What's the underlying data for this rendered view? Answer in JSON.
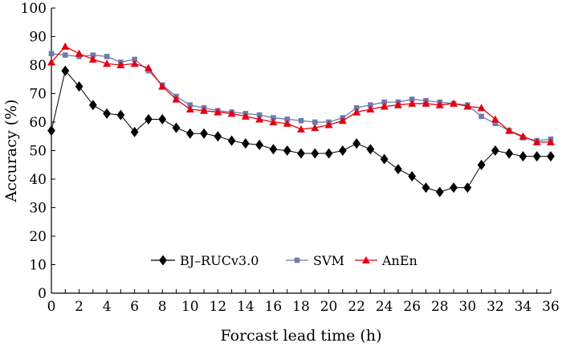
{
  "chart_data": {
    "type": "line",
    "title": "",
    "xlabel": "Forcast lead time (h)",
    "ylabel": "Accuracy (%)",
    "xlim": [
      0,
      36
    ],
    "ylim": [
      0,
      100
    ],
    "xticks": [
      "0",
      "2",
      "4",
      "6",
      "8",
      "10",
      "12",
      "14",
      "16",
      "18",
      "20",
      "22",
      "24",
      "26",
      "28",
      "30",
      "32",
      "34",
      "36"
    ],
    "yticks": [
      "0",
      "10",
      "20",
      "30",
      "40",
      "50",
      "60",
      "70",
      "80",
      "90",
      "100"
    ],
    "x": [
      0,
      1,
      2,
      3,
      4,
      5,
      6,
      7,
      8,
      9,
      10,
      11,
      12,
      13,
      14,
      15,
      16,
      17,
      18,
      19,
      20,
      21,
      22,
      23,
      24,
      25,
      26,
      27,
      28,
      29,
      30,
      31,
      32,
      33,
      34,
      35,
      36
    ],
    "legend_position": "bottom-center",
    "series": [
      {
        "name": "BJ–RUCv3.0",
        "color": "#000000",
        "marker": "diamond",
        "values": [
          57,
          78,
          72.5,
          66,
          63,
          62.5,
          56.5,
          61,
          61,
          58,
          56,
          56,
          55,
          53.5,
          52.5,
          52,
          50.5,
          50,
          49,
          49,
          49,
          50,
          52.5,
          50.5,
          47,
          43.5,
          41,
          37,
          35.5,
          37,
          37,
          45,
          50,
          49,
          48,
          48,
          48
        ]
      },
      {
        "name": "SVM",
        "color": "#6e7bab",
        "marker": "square",
        "values": [
          84,
          83.5,
          83,
          83.5,
          83,
          81,
          82,
          78,
          73,
          69,
          66,
          65,
          64,
          63.5,
          63,
          62.5,
          61.5,
          61,
          60.5,
          60,
          60,
          61.5,
          65,
          66,
          67,
          67,
          68,
          67.5,
          67,
          66.5,
          66,
          62,
          59.5,
          57,
          54.5,
          53.5,
          54
        ]
      },
      {
        "name": "AnEn",
        "color": "#e30010",
        "marker": "triangle",
        "values": [
          81,
          86.5,
          84,
          82,
          80.5,
          80,
          80.5,
          79,
          72.5,
          68,
          64.5,
          64,
          63.5,
          63,
          62,
          61,
          60,
          59.5,
          57.5,
          58,
          59,
          60.5,
          63.5,
          64.5,
          65.5,
          66,
          66.5,
          66.5,
          66,
          66.5,
          65.5,
          65,
          61,
          57,
          55,
          53,
          53
        ]
      }
    ]
  }
}
